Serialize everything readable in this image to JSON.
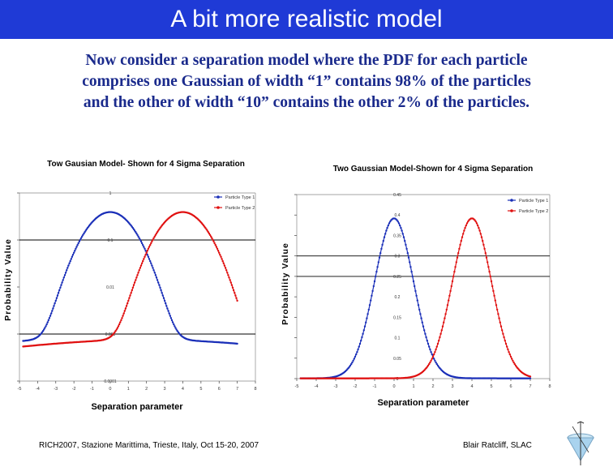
{
  "slide": {
    "title": "A bit more realistic model",
    "body_lines": [
      "Now consider a separation model where the PDF for  each particle",
      "comprises one Gaussian of width “1” contains 98% of the particles",
      "and the other of width “10” contains the other 2% of the particles."
    ],
    "footer_left": "RICH2007, Stazione Marittima, Trieste, Italy, Oct 15-20, 2007",
    "footer_right": "Blair Ratcliff, SLAC"
  },
  "colors": {
    "title_bar": "#1f3ad6",
    "body_text": "#1a2a8c",
    "series1": "#1a2fb8",
    "series2": "#e01010"
  },
  "chart_data": [
    {
      "type": "scatter",
      "title": "Tow Gausian Model- Shown for 4 Sigma Separation",
      "xlabel": "Separation parameter",
      "ylabel": "Probability Value",
      "y_scale": "log",
      "xlim": [
        -5,
        8
      ],
      "ylim": [
        0.0001,
        1
      ],
      "x_ticks": [
        "-5",
        "-4",
        "-3",
        "-2",
        "-1",
        "0",
        "1",
        "2",
        "3",
        "4",
        "5",
        "6",
        "7",
        "8"
      ],
      "y_ticks": [
        {
          "label": "1",
          "value": 1
        },
        {
          "label": "0.1",
          "value": 0.1
        },
        {
          "label": "0.01",
          "value": 0.01
        },
        {
          "label": "0.001",
          "value": 0.001
        },
        {
          "label": "0.0001",
          "value": 0.0001
        }
      ],
      "legend": [
        "Particle Type 1",
        "Particle Type 2"
      ],
      "legend_position": "top-right",
      "series": [
        {
          "name": "Particle Type 1",
          "center": 0,
          "x_range": [
            -4.8,
            7.0
          ]
        },
        {
          "name": "Particle Type 2",
          "center": 4,
          "x_range": [
            -4.8,
            7.0
          ]
        }
      ],
      "model": {
        "narrow_fraction": 0.98,
        "narrow_width": 1,
        "wide_fraction": 0.02,
        "wide_width": 10
      }
    },
    {
      "type": "scatter",
      "title": "Two Gaussian Model-Shown for 4 Sigma Separation",
      "xlabel": "Separation parameter",
      "ylabel": "Probability Value",
      "y_scale": "linear",
      "xlim": [
        -5,
        8
      ],
      "ylim": [
        0,
        0.45
      ],
      "x_ticks": [
        "-5",
        "-4",
        "-3",
        "-2",
        "-1",
        "0",
        "1",
        "2",
        "3",
        "4",
        "5",
        "6",
        "7",
        "8"
      ],
      "y_ticks": [
        {
          "label": "0.45",
          "value": 0.45
        },
        {
          "label": "0.4",
          "value": 0.4
        },
        {
          "label": "0.35",
          "value": 0.35
        },
        {
          "label": "0.3",
          "value": 0.3
        },
        {
          "label": "0.25",
          "value": 0.25
        },
        {
          "label": "0.2",
          "value": 0.2
        },
        {
          "label": "0.15",
          "value": 0.15
        },
        {
          "label": "0.1",
          "value": 0.1
        },
        {
          "label": "0.05",
          "value": 0.05
        },
        {
          "label": "0",
          "value": 0
        }
      ],
      "legend": [
        "Particle Type 1",
        "Particle Type 2"
      ],
      "legend_position": "top-right",
      "series": [
        {
          "name": "Particle Type 1",
          "center": 0,
          "x_range": [
            -4.8,
            7.0
          ]
        },
        {
          "name": "Particle Type 2",
          "center": 4,
          "x_range": [
            -4.8,
            7.0
          ]
        }
      ],
      "model": {
        "narrow_fraction": 0.98,
        "narrow_width": 1,
        "wide_fraction": 0.02,
        "wide_width": 10
      }
    }
  ]
}
